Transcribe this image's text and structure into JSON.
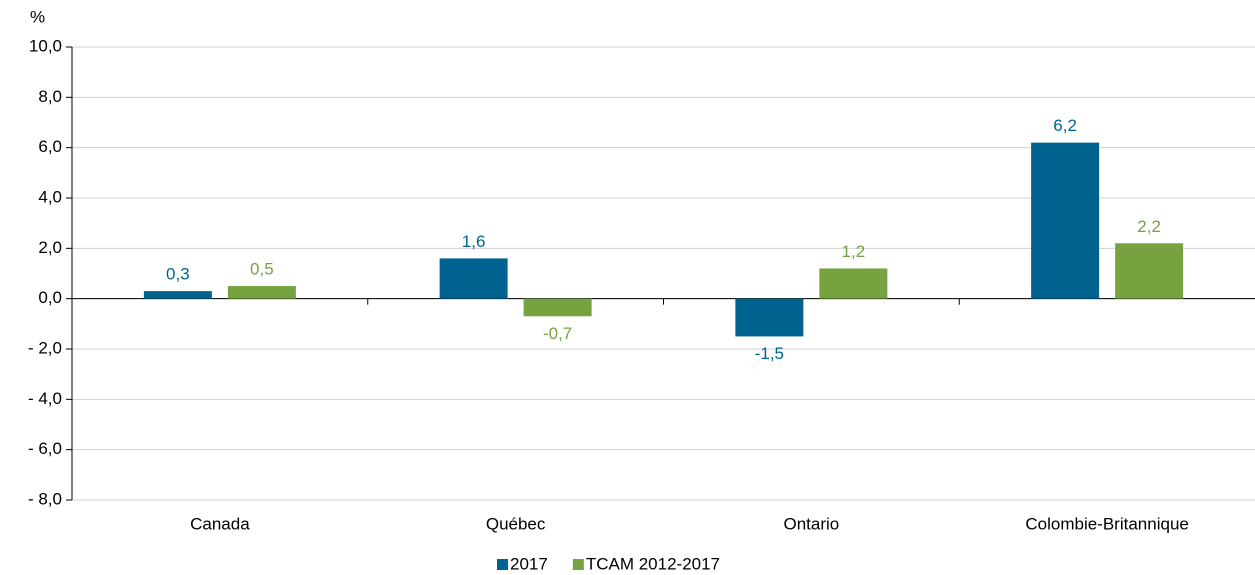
{
  "chart_data": {
    "type": "bar",
    "y_axis_label": "%",
    "categories": [
      "Canada",
      "Québec",
      "Ontario",
      "Colombie-Britannique"
    ],
    "series": [
      {
        "name": "2017",
        "color": "#00638f",
        "values": [
          0.3,
          1.6,
          -1.5,
          6.2
        ],
        "value_labels": [
          "0,3",
          "1,6",
          "-1,5",
          "6,2"
        ]
      },
      {
        "name": "TCAM 2012-2017",
        "color": "#76a23f",
        "values": [
          0.5,
          -0.7,
          1.2,
          2.2
        ],
        "value_labels": [
          "0,5",
          "-0,7",
          "1,2",
          "2,2"
        ]
      }
    ],
    "ylim": [
      -8,
      10
    ],
    "yticks": [
      {
        "value": -8,
        "label": "- 8,0"
      },
      {
        "value": -6,
        "label": "- 6,0"
      },
      {
        "value": -4,
        "label": "- 4,0"
      },
      {
        "value": -2,
        "label": "- 2,0"
      },
      {
        "value": 0,
        "label": "0,0"
      },
      {
        "value": 2,
        "label": "2,0"
      },
      {
        "value": 4,
        "label": "4,0"
      },
      {
        "value": 6,
        "label": "6,0"
      },
      {
        "value": 8,
        "label": "8,0"
      },
      {
        "value": 10,
        "label": "10,0"
      }
    ],
    "grid": true,
    "legend": "bottom"
  }
}
